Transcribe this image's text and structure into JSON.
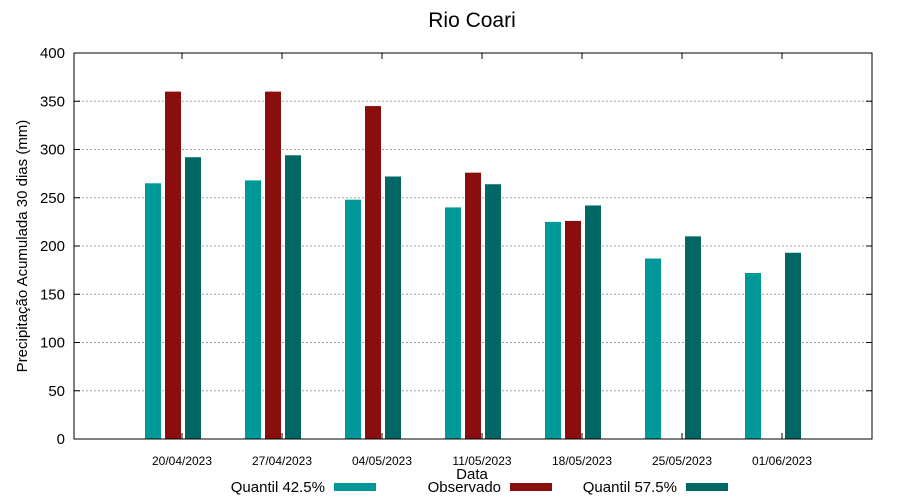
{
  "chart_data": {
    "type": "bar",
    "title": "Rio Coari",
    "xlabel": "Data",
    "ylabel": "Precipitação Acumulada 30 dias (mm)",
    "ylim": [
      0,
      400
    ],
    "yticks": [
      0,
      50,
      100,
      150,
      200,
      250,
      300,
      350,
      400
    ],
    "grid": true,
    "legend_position": "bottom",
    "categories": [
      "20/04/2023",
      "27/04/2023",
      "04/05/2023",
      "11/05/2023",
      "18/05/2023",
      "25/05/2023",
      "01/06/2023"
    ],
    "series": [
      {
        "name": "Quantil 42.5%",
        "color": "#009999",
        "values": [
          265,
          268,
          248,
          240,
          225,
          187,
          172
        ]
      },
      {
        "name": "Observado",
        "color": "#8b0e0e",
        "values": [
          360,
          360,
          345,
          276,
          226,
          null,
          null
        ]
      },
      {
        "name": "Quantil 57.5%",
        "color": "#006666",
        "values": [
          292,
          294,
          272,
          264,
          242,
          210,
          193
        ]
      }
    ]
  }
}
